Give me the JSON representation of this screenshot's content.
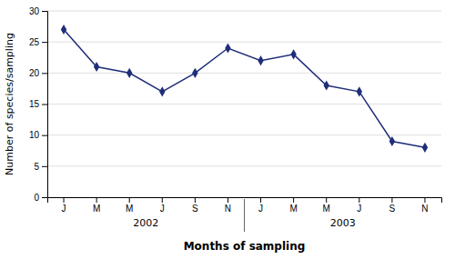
{
  "chart_data": {
    "type": "line",
    "categories": [
      "J",
      "M",
      "M",
      "J",
      "S",
      "N",
      "J",
      "M",
      "M",
      "J",
      "S",
      "N"
    ],
    "values": [
      27,
      21,
      20,
      17,
      20,
      24,
      22,
      23,
      18,
      17,
      9,
      8
    ],
    "annotations": [
      "2002",
      "2003"
    ],
    "ylabel": "Number of species/sampling",
    "xlabel": "Months of sampling",
    "color": "#1f2e7a",
    "marker": "diamond",
    "ylim": [
      0,
      30
    ],
    "yticks": [
      0,
      5,
      10,
      15,
      20,
      25,
      30
    ],
    "grid": true
  }
}
